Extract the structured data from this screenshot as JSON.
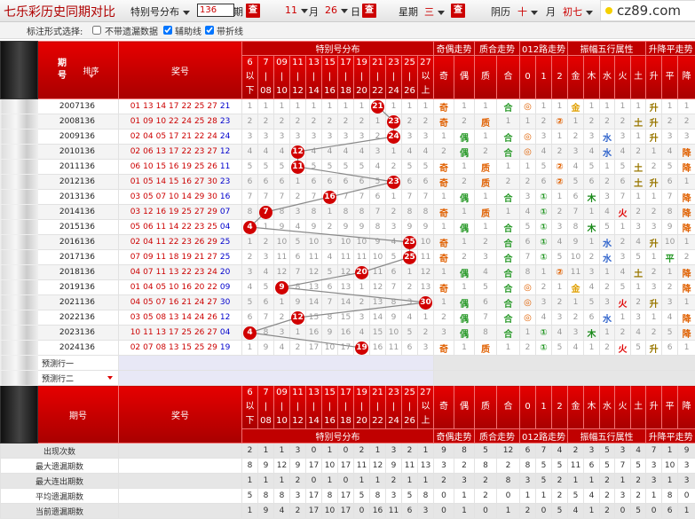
{
  "toolbar": {
    "title": "七乐彩历史同期对比",
    "mode": "特别号分布",
    "issue": "136",
    "issue_unit": "期",
    "query": "查",
    "month": "11",
    "month_unit": "月",
    "day": "26",
    "day_unit": "日",
    "weekday_label": "星期",
    "weekday": "三",
    "lunar_label": "阴历",
    "lunar_month": "十",
    "lunar_day": "初七",
    "logo": "cz89.com"
  },
  "options": {
    "label": "标注形式选择:",
    "items": [
      {
        "label": "不带遗漏数据",
        "checked": false
      },
      {
        "label": "辅助线",
        "checked": true
      },
      {
        "label": "带折线",
        "checked": true
      }
    ]
  },
  "table": {
    "headers": {
      "issue": "期号",
      "sort": "排序",
      "numbers": "奖号",
      "groups": [
        {
          "name": "特别号分布",
          "columns": [
            [
              "6",
              "以",
              "下"
            ],
            [
              "7",
              "|",
              "08"
            ],
            [
              "09",
              "|",
              "10"
            ],
            [
              "11",
              "|",
              "12"
            ],
            [
              "13",
              "|",
              "14"
            ],
            [
              "15",
              "|",
              "16"
            ],
            [
              "17",
              "|",
              "18"
            ],
            [
              "19",
              "|",
              "20"
            ],
            [
              "21",
              "|",
              "22"
            ],
            [
              "23",
              "|",
              "24"
            ],
            [
              "25",
              "|",
              "26"
            ],
            [
              "27",
              "以",
              "上"
            ]
          ]
        },
        {
          "name": "奇偶走势",
          "columns": [
            [
              "奇"
            ],
            [
              "偶"
            ]
          ]
        },
        {
          "name": "质合走势",
          "columns": [
            [
              "质"
            ],
            [
              "合"
            ]
          ]
        },
        {
          "name": "012路走势",
          "columns": [
            [
              "0"
            ],
            [
              "1"
            ],
            [
              "2"
            ]
          ]
        },
        {
          "name": "振幅五行属性",
          "columns": [
            [
              "金"
            ],
            [
              "木"
            ],
            [
              "水"
            ],
            [
              "火"
            ],
            [
              "土"
            ]
          ]
        },
        {
          "name": "升降平走势",
          "columns": [
            [
              "升"
            ],
            [
              "平"
            ],
            [
              "降"
            ]
          ]
        }
      ]
    },
    "rows": [
      {
        "issue": "2007136",
        "numbers": [
          "01",
          "13",
          "14",
          "17",
          "22",
          "25",
          "27"
        ],
        "special": "21",
        "cells": [
          1,
          1,
          1,
          1,
          1,
          1,
          1,
          1,
          21,
          1,
          1,
          1,
          "奇",
          1,
          1,
          "合",
          "◎",
          1,
          1,
          "金",
          1,
          1,
          1,
          1,
          "升",
          1,
          1
        ]
      },
      {
        "issue": "2008136",
        "numbers": [
          "01",
          "09",
          "10",
          "22",
          "24",
          "25",
          "28"
        ],
        "special": "23",
        "cells": [
          2,
          2,
          2,
          2,
          2,
          2,
          2,
          2,
          1,
          23,
          2,
          2,
          "奇",
          2,
          "质",
          1,
          1,
          2,
          "②",
          1,
          2,
          2,
          2,
          "土",
          "升",
          2,
          2
        ]
      },
      {
        "issue": "2009136",
        "numbers": [
          "02",
          "04",
          "05",
          "17",
          "21",
          "22",
          "24"
        ],
        "special": "24",
        "cells": [
          3,
          3,
          3,
          3,
          3,
          3,
          3,
          3,
          2,
          24,
          3,
          3,
          1,
          "偶",
          1,
          "合",
          "◎",
          3,
          1,
          2,
          3,
          "水",
          3,
          1,
          "升",
          3,
          3
        ]
      },
      {
        "issue": "2010136",
        "numbers": [
          "02",
          "06",
          "13",
          "17",
          "22",
          "23",
          "27"
        ],
        "special": "12",
        "cells": [
          4,
          4,
          4,
          12,
          4,
          4,
          4,
          4,
          3,
          1,
          4,
          4,
          2,
          "偶",
          2,
          "合",
          "◎",
          4,
          2,
          3,
          4,
          "水",
          4,
          2,
          1,
          4,
          "降"
        ]
      },
      {
        "issue": "2011136",
        "numbers": [
          "06",
          "10",
          "15",
          "16",
          "19",
          "25",
          "26"
        ],
        "special": "11",
        "cells": [
          5,
          5,
          5,
          11,
          5,
          5,
          5,
          5,
          4,
          2,
          5,
          5,
          "奇",
          1,
          "质",
          1,
          1,
          5,
          "②",
          4,
          5,
          1,
          5,
          "土",
          2,
          5,
          "降"
        ]
      },
      {
        "issue": "2012136",
        "numbers": [
          "01",
          "05",
          "14",
          "15",
          "16",
          "27",
          "30"
        ],
        "special": "23",
        "cells": [
          6,
          6,
          6,
          1,
          6,
          6,
          6,
          6,
          5,
          23,
          6,
          6,
          "奇",
          2,
          "质",
          2,
          2,
          6,
          "②",
          5,
          6,
          2,
          6,
          "土",
          "升",
          6,
          1
        ]
      },
      {
        "issue": "2013136",
        "numbers": [
          "03",
          "05",
          "07",
          "10",
          "14",
          "29",
          "30"
        ],
        "special": "16",
        "cells": [
          7,
          7,
          7,
          2,
          7,
          16,
          7,
          7,
          6,
          1,
          7,
          7,
          1,
          "偶",
          1,
          "合",
          3,
          "①",
          1,
          6,
          "木",
          3,
          7,
          1,
          1,
          7,
          "降"
        ]
      },
      {
        "issue": "2014136",
        "numbers": [
          "03",
          "12",
          "16",
          "19",
          "25",
          "27",
          "29"
        ],
        "special": "07",
        "cells": [
          8,
          7,
          8,
          3,
          8,
          1,
          8,
          8,
          7,
          2,
          8,
          8,
          "奇",
          1,
          "质",
          1,
          4,
          "①",
          2,
          7,
          1,
          4,
          "火",
          2,
          2,
          8,
          "降"
        ]
      },
      {
        "issue": "2015136",
        "numbers": [
          "05",
          "06",
          "11",
          "14",
          "22",
          "23",
          "25"
        ],
        "special": "04",
        "cells": [
          4,
          1,
          9,
          4,
          9,
          2,
          9,
          9,
          8,
          3,
          9,
          9,
          1,
          "偶",
          1,
          "合",
          5,
          "①",
          3,
          8,
          "木",
          5,
          1,
          3,
          3,
          9,
          "降"
        ]
      },
      {
        "issue": "2016136",
        "numbers": [
          "02",
          "04",
          "11",
          "22",
          "23",
          "26",
          "29"
        ],
        "special": "25",
        "cells": [
          1,
          2,
          10,
          5,
          10,
          3,
          10,
          10,
          9,
          4,
          25,
          10,
          "奇",
          1,
          2,
          "合",
          6,
          "①",
          4,
          9,
          1,
          "水",
          2,
          4,
          "升",
          10,
          1
        ]
      },
      {
        "issue": "2017136",
        "numbers": [
          "07",
          "09",
          "11",
          "18",
          "19",
          "21",
          "27"
        ],
        "special": "25",
        "cells": [
          2,
          3,
          11,
          6,
          11,
          4,
          11,
          11,
          10,
          5,
          25,
          11,
          "奇",
          2,
          3,
          "合",
          7,
          "①",
          5,
          10,
          2,
          "水",
          3,
          5,
          1,
          "平",
          2
        ]
      },
      {
        "issue": "2018136",
        "numbers": [
          "04",
          "07",
          "11",
          "13",
          "22",
          "23",
          "24"
        ],
        "special": "20",
        "cells": [
          3,
          4,
          12,
          7,
          12,
          5,
          12,
          20,
          11,
          6,
          1,
          12,
          1,
          "偶",
          4,
          "合",
          8,
          1,
          "②",
          11,
          3,
          1,
          4,
          "土",
          2,
          1,
          "降"
        ]
      },
      {
        "issue": "2019136",
        "numbers": [
          "01",
          "04",
          "05",
          "10",
          "16",
          "20",
          "22"
        ],
        "special": "09",
        "cells": [
          4,
          5,
          9,
          8,
          13,
          6,
          13,
          1,
          12,
          7,
          2,
          13,
          "奇",
          1,
          5,
          "合",
          "◎",
          2,
          1,
          "金",
          4,
          2,
          5,
          1,
          3,
          2,
          "降"
        ]
      },
      {
        "issue": "2021136",
        "numbers": [
          "04",
          "05",
          "07",
          "16",
          "21",
          "24",
          "27"
        ],
        "special": "30",
        "cells": [
          5,
          6,
          1,
          9,
          14,
          7,
          14,
          2,
          13,
          8,
          3,
          30,
          1,
          "偶",
          6,
          "合",
          "◎",
          3,
          2,
          1,
          5,
          3,
          "火",
          2,
          "升",
          3,
          1
        ]
      },
      {
        "issue": "2022136",
        "numbers": [
          "03",
          "05",
          "08",
          "13",
          "14",
          "24",
          "26"
        ],
        "special": "12",
        "cells": [
          6,
          7,
          2,
          12,
          15,
          8,
          15,
          3,
          14,
          9,
          4,
          1,
          2,
          "偶",
          7,
          "合",
          "◎",
          4,
          3,
          2,
          6,
          "水",
          1,
          3,
          1,
          4,
          "降"
        ]
      },
      {
        "issue": "2023136",
        "numbers": [
          "10",
          "11",
          "13",
          "17",
          "25",
          "26",
          "27"
        ],
        "special": "04",
        "cells": [
          4,
          8,
          3,
          1,
          16,
          9,
          16,
          4,
          15,
          10,
          5,
          2,
          3,
          "偶",
          8,
          "合",
          1,
          "①",
          4,
          3,
          "木",
          1,
          2,
          4,
          2,
          5,
          "降"
        ]
      },
      {
        "issue": "2024136",
        "numbers": [
          "02",
          "07",
          "08",
          "13",
          "15",
          "25",
          "29"
        ],
        "special": "19",
        "cells": [
          1,
          9,
          4,
          2,
          17,
          10,
          17,
          19,
          16,
          11,
          6,
          3,
          "奇",
          1,
          "质",
          1,
          2,
          "①",
          5,
          4,
          1,
          2,
          "火",
          5,
          "升",
          6,
          1
        ]
      }
    ],
    "forecast": [
      "预测行一",
      "预测行二"
    ],
    "stats": [
      {
        "label": "出现次数",
        "values": [
          2,
          1,
          1,
          3,
          0,
          1,
          0,
          2,
          1,
          3,
          2,
          1,
          9,
          8,
          5,
          12,
          6,
          7,
          4,
          2,
          3,
          5,
          3,
          4,
          7,
          1,
          9
        ]
      },
      {
        "label": "最大遗漏期数",
        "values": [
          8,
          9,
          12,
          9,
          17,
          10,
          17,
          11,
          12,
          9,
          11,
          13,
          3,
          2,
          8,
          2,
          8,
          5,
          5,
          11,
          6,
          5,
          7,
          5,
          3,
          10,
          3
        ]
      },
      {
        "label": "最大连出期数",
        "values": [
          1,
          1,
          1,
          2,
          0,
          1,
          0,
          1,
          1,
          2,
          1,
          1,
          2,
          3,
          2,
          8,
          3,
          5,
          2,
          1,
          1,
          2,
          1,
          2,
          3,
          1,
          3
        ]
      },
      {
        "label": "平均遗漏期数",
        "values": [
          5,
          8,
          8,
          3,
          17,
          8,
          17,
          5,
          8,
          3,
          5,
          8,
          0,
          1,
          2,
          0,
          1,
          1,
          2,
          5,
          4,
          2,
          3,
          2,
          1,
          8,
          0
        ]
      },
      {
        "label": "当前遗漏期数",
        "values": [
          1,
          9,
          4,
          2,
          17,
          10,
          17,
          0,
          16,
          11,
          6,
          3,
          0,
          1,
          0,
          1,
          2,
          0,
          5,
          4,
          1,
          2,
          0,
          5,
          0,
          6,
          1
        ]
      }
    ]
  }
}
